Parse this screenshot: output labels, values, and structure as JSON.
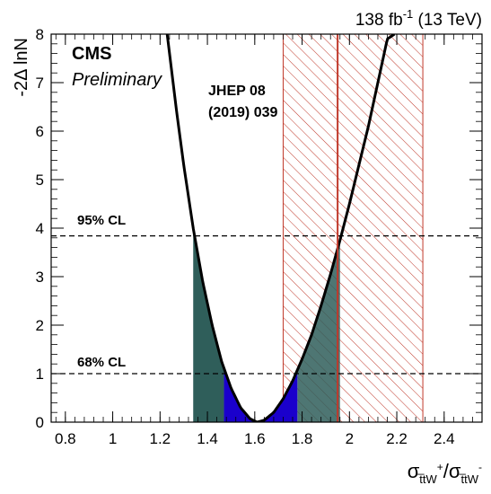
{
  "header": {
    "lumi_value": "138 fb",
    "lumi_exponent": "-1",
    "lumi_energy": " (13 TeV)"
  },
  "chart_data": {
    "type": "line",
    "experiment_label": "CMS",
    "status_label": "Preliminary",
    "ylabel": "-2Δ lnN",
    "xlabel": {
      "base": "σ",
      "numerator_sub": "t̅tW",
      "numerator_sup": "+",
      "denominator_base": "/σ",
      "denominator_sub": "t̅tW",
      "denominator_sup": "-"
    },
    "xlim": [
      0.74,
      2.56
    ],
    "ylim": [
      0,
      8
    ],
    "x_ticks": [
      0.8,
      1,
      1.2,
      1.4,
      1.6,
      1.8,
      2,
      2.2,
      2.4
    ],
    "x_tick_labels": [
      "0.8",
      "1",
      "1.2",
      "1.4",
      "1.6",
      "1.8",
      "2",
      "2.2",
      "2.4"
    ],
    "y_ticks": [
      0,
      1,
      2,
      3,
      4,
      5,
      6,
      7,
      8
    ],
    "y_tick_labels": [
      "0",
      "1",
      "2",
      "3",
      "4",
      "5",
      "6",
      "7",
      "8"
    ],
    "likelihood_curve": {
      "x": [
        1.23,
        1.27,
        1.3,
        1.34,
        1.38,
        1.42,
        1.46,
        1.5,
        1.54,
        1.58,
        1.61,
        1.64,
        1.68,
        1.72,
        1.76,
        1.8,
        1.84,
        1.88,
        1.92,
        1.96,
        2.0,
        2.04,
        2.08,
        2.12,
        2.16,
        2.19
      ],
      "y": [
        8.0,
        6.4,
        5.3,
        4.0,
        2.9,
        2.0,
        1.25,
        0.7,
        0.3,
        0.07,
        0.0,
        0.04,
        0.2,
        0.48,
        0.85,
        1.3,
        1.8,
        2.4,
        3.05,
        3.75,
        4.5,
        5.3,
        6.1,
        7.0,
        7.9,
        8.0
      ]
    },
    "best_fit": 1.61,
    "cl_68": {
      "label": "68% CL",
      "level": 1.0,
      "lower": 1.47,
      "upper": 1.78,
      "color": "#1a00cc"
    },
    "cl_95": {
      "label": "95% CL",
      "level": 3.84,
      "lower": 1.34,
      "upper": 1.96,
      "color": "#2f5e5a"
    },
    "reference": {
      "label_line1": "JHEP 08",
      "label_line2": "(2019) 039",
      "central": 1.95,
      "lower": 1.72,
      "upper": 2.31,
      "color": "#c0392b"
    },
    "grid": false
  }
}
